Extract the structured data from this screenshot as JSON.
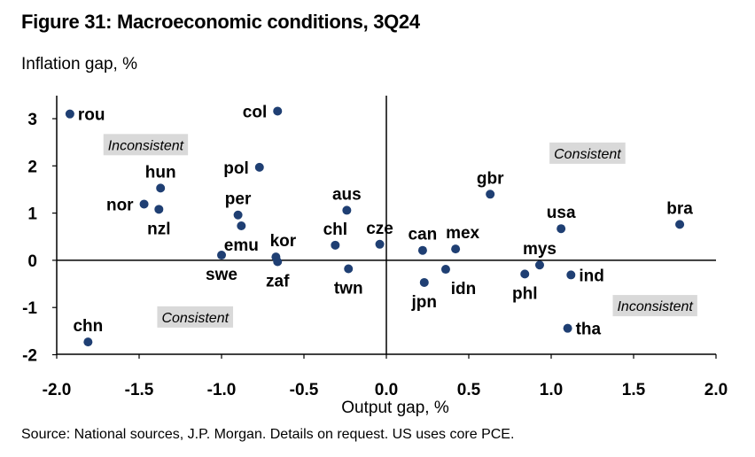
{
  "figure": {
    "title": "Figure 31: Macroeconomic conditions, 3Q24",
    "source": "Source: National sources, J.P. Morgan. Details on request. US uses core PCE."
  },
  "chart_data": {
    "type": "scatter",
    "xlabel": "Output gap, %",
    "ylabel": "Inflation gap, %",
    "xlim": [
      -2.0,
      2.0
    ],
    "ylim": [
      -2,
      3.5
    ],
    "x_ticks": [
      -2.0,
      -1.5,
      -1.0,
      -0.5,
      0.0,
      0.5,
      1.0,
      1.5,
      2.0
    ],
    "x_tick_labels": [
      "-2.0",
      "-1.5",
      "-1.0",
      "-0.5",
      "0.0",
      "0.5",
      "1.0",
      "1.5",
      "2.0"
    ],
    "y_ticks": [
      -2,
      -1,
      0,
      1,
      2,
      3
    ],
    "y_tick_labels": [
      "-2",
      "-1",
      "0",
      "1",
      "2",
      "3"
    ],
    "grid": false,
    "marker_color": "#1f3f73",
    "zone_box_color": "#d9d9d9",
    "points": [
      {
        "label": "rou",
        "x": -1.92,
        "y": 3.1,
        "anchor": "right"
      },
      {
        "label": "col",
        "x": -0.66,
        "y": 3.16,
        "anchor": "left"
      },
      {
        "label": "pol",
        "x": -0.77,
        "y": 1.97,
        "anchor": "left"
      },
      {
        "label": "hun",
        "x": -1.37,
        "y": 1.53,
        "anchor": "above"
      },
      {
        "label": "nor",
        "x": -1.47,
        "y": 1.19,
        "anchor": "left"
      },
      {
        "label": "nzl",
        "x": -1.38,
        "y": 1.08,
        "anchor": "below"
      },
      {
        "label": "per",
        "x": -0.9,
        "y": 0.96,
        "anchor": "above"
      },
      {
        "label": "emu",
        "x": -0.88,
        "y": 0.73,
        "anchor": "below"
      },
      {
        "label": "kor",
        "x": -0.67,
        "y": 0.07,
        "anchor": "above-right"
      },
      {
        "label": "zaf",
        "x": -0.66,
        "y": -0.03,
        "anchor": "below"
      },
      {
        "label": "swe",
        "x": -1.0,
        "y": 0.11,
        "anchor": "below"
      },
      {
        "label": "aus",
        "x": -0.24,
        "y": 1.06,
        "anchor": "above"
      },
      {
        "label": "chl",
        "x": -0.31,
        "y": 0.32,
        "anchor": "above"
      },
      {
        "label": "cze",
        "x": -0.04,
        "y": 0.34,
        "anchor": "above"
      },
      {
        "label": "twn",
        "x": -0.23,
        "y": -0.18,
        "anchor": "below"
      },
      {
        "label": "can",
        "x": 0.22,
        "y": 0.21,
        "anchor": "above"
      },
      {
        "label": "mex",
        "x": 0.42,
        "y": 0.24,
        "anchor": "above-right"
      },
      {
        "label": "idn",
        "x": 0.36,
        "y": -0.19,
        "anchor": "below-right"
      },
      {
        "label": "jpn",
        "x": 0.23,
        "y": -0.47,
        "anchor": "below"
      },
      {
        "label": "gbr",
        "x": 0.63,
        "y": 1.4,
        "anchor": "above"
      },
      {
        "label": "usa",
        "x": 1.06,
        "y": 0.67,
        "anchor": "above"
      },
      {
        "label": "mys",
        "x": 0.93,
        "y": -0.1,
        "anchor": "above"
      },
      {
        "label": "phl",
        "x": 0.84,
        "y": -0.29,
        "anchor": "below"
      },
      {
        "label": "ind",
        "x": 1.12,
        "y": -0.31,
        "anchor": "right"
      },
      {
        "label": "tha",
        "x": 1.1,
        "y": -1.44,
        "anchor": "right"
      },
      {
        "label": "bra",
        "x": 1.78,
        "y": 0.76,
        "anchor": "above"
      },
      {
        "label": "chn",
        "x": -1.81,
        "y": -1.73,
        "anchor": "above"
      }
    ],
    "annotations": [
      {
        "text": "Inconsistent",
        "x": -1.46,
        "y": 2.45
      },
      {
        "text": "Consistent",
        "x": 1.22,
        "y": 2.27
      },
      {
        "text": "Consistent",
        "x": -1.16,
        "y": -1.2
      },
      {
        "text": "Inconsistent",
        "x": 1.63,
        "y": -0.96
      }
    ]
  }
}
